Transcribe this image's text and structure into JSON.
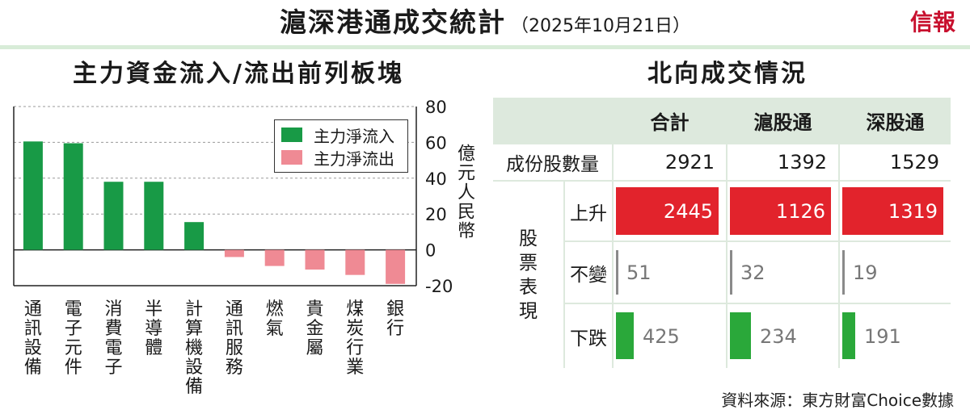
{
  "header": {
    "title": "滬深港通成交統計",
    "subtitle": "（2025年10月21日）",
    "brand": "信報"
  },
  "colors": {
    "inflow": "#189a46",
    "outflow": "#ef8a94",
    "rise": "#e2232c",
    "flat": "#8a8a8a",
    "fall": "#2aa83a",
    "header_bg": "#dde9dd"
  },
  "left": {
    "title": "主力資金流入/流出前列板塊",
    "legend": {
      "inflow": "主力淨流入",
      "outflow": "主力淨流出"
    },
    "ylabel": "億元人民幣"
  },
  "chart_data": {
    "type": "bar",
    "title": "主力資金流入/流出前列板塊",
    "ylabel": "億元人民幣",
    "y_axis_position": "right",
    "ylim": [
      -20,
      80
    ],
    "yticks": [
      80,
      60,
      40,
      20,
      0,
      -20
    ],
    "grid": true,
    "legend_position": "top-right",
    "categories": [
      "通訊設備",
      "電子元件",
      "消費電子",
      "半導體",
      "計算機設備",
      "通訊服務",
      "燃氣",
      "貴金屬",
      "煤炭行業",
      "銀行"
    ],
    "values": [
      60.5,
      59.5,
      38,
      38,
      15.5,
      -4,
      -9,
      -11,
      -14,
      -19
    ]
  },
  "right": {
    "title": "北向成交情況",
    "columns": [
      "合計",
      "滬股通",
      "深股通"
    ],
    "rows": {
      "count_label": "成份股數量",
      "count": [
        "2921",
        "1392",
        "1529"
      ],
      "group_label": "股票表現",
      "rise_label": "上升",
      "rise": [
        "2445",
        "1126",
        "1319"
      ],
      "flat_label": "不變",
      "flat": [
        "51",
        "32",
        "19"
      ],
      "fall_label": "下跌",
      "fall": [
        "425",
        "234",
        "191"
      ]
    }
  },
  "source": "資料來源：東方財富Choice數據"
}
